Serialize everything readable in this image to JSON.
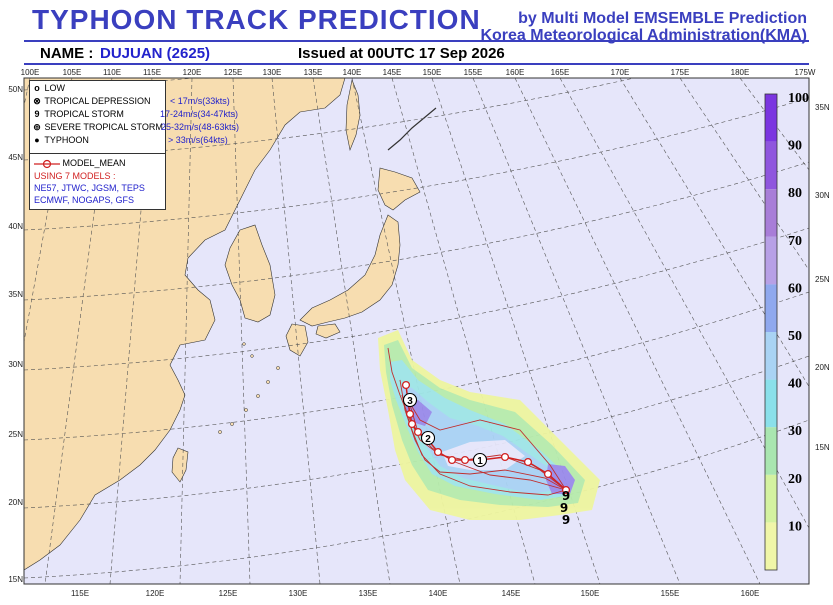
{
  "header": {
    "title": "TYPHOON  TRACK  PREDICTION",
    "org_line1": "by Multi Model EMSEMBLE Prediction",
    "org_line2": "Korea Meteorological Administration(KMA)",
    "name_label": "NAME :",
    "name_value": "DUJUAN (2625)",
    "issued": "Issued at  00UTC 17 Sep 2026"
  },
  "map": {
    "top_lon_labels": [
      "100E",
      "105E",
      "110E",
      "115E",
      "120E",
      "125E",
      "130E",
      "135E",
      "140E",
      "145E",
      "150E",
      "155E",
      "160E",
      "165E",
      "170E",
      "175E",
      "180E",
      "175W"
    ],
    "bottom_lon_labels": [
      "115E",
      "120E",
      "125E",
      "130E",
      "135E",
      "140E",
      "145E",
      "150E",
      "155E",
      "160E"
    ],
    "left_lat_labels": [
      "50N",
      "45N",
      "40N",
      "35N",
      "30N",
      "25N",
      "20N",
      "15N"
    ],
    "right_lat_labels": [
      "35N",
      "30N",
      "25N",
      "20N",
      "15N"
    ],
    "colors": {
      "land": "#f7ddb0",
      "ocean": "#e6e6fa",
      "track": "#d02020",
      "title": "#3a3fbf"
    }
  },
  "legend": {
    "items": [
      {
        "symbol": "o",
        "label": "LOW",
        "speed": ""
      },
      {
        "symbol": "⊗",
        "label": "TROPICAL DEPRESSION",
        "speed": "< 17m/s(33kts)"
      },
      {
        "symbol": "9",
        "label": "TROPICAL STORM",
        "speed": "17-24m/s(34-47kts)"
      },
      {
        "symbol": "⊚",
        "label": "SEVERE TROPICAL STORM",
        "speed": "25-32m/s(48-63kts)"
      },
      {
        "symbol": "●",
        "label": "TYPHOON",
        "speed": "> 33m/s(64kts)"
      }
    ],
    "model_mean": "MODEL_MEAN",
    "models_heading": "USING 7 MODELS :",
    "models_line1": "NE57, JTWC, JGSM, TEPS",
    "models_line2": "ECMWF, NOGAPS, GFS"
  },
  "track": {
    "day_markers": [
      "1",
      "2",
      "3"
    ]
  },
  "colorbar": {
    "labels": [
      "100",
      "90",
      "80",
      "70",
      "60",
      "50",
      "40",
      "30",
      "20",
      "10"
    ],
    "colors": [
      "#7b35e0",
      "#8f55de",
      "#a87dd8",
      "#b7a0e6",
      "#8fa8ee",
      "#a9d3f4",
      "#8ae0ea",
      "#a9e6b0",
      "#d4f2a0",
      "#f0f6a8"
    ]
  }
}
